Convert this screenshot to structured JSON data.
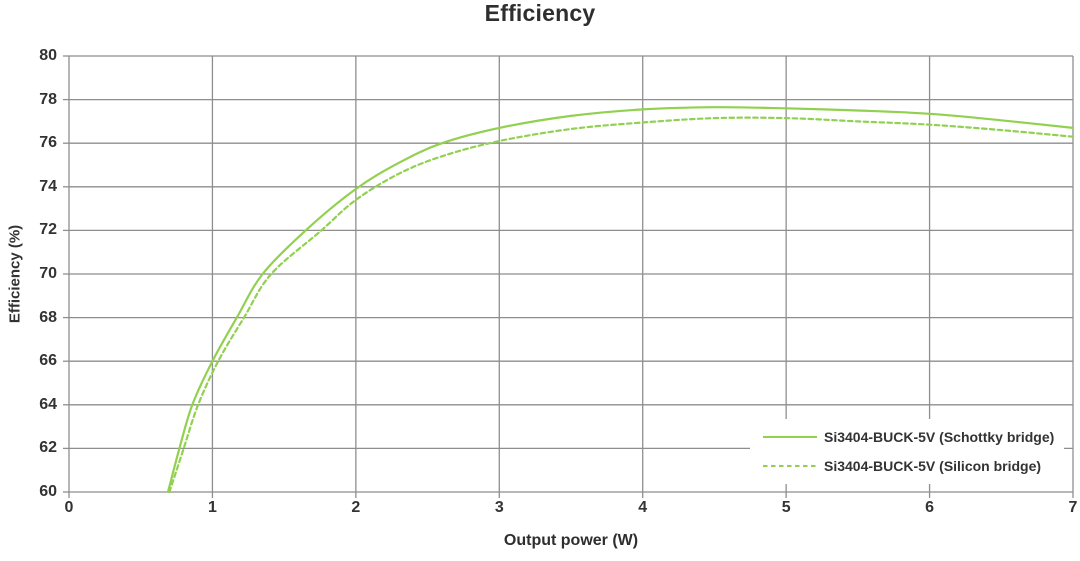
{
  "title": "Efficiency",
  "colors": {
    "series_green": "#92d050",
    "grid": "#8e8e8e",
    "text": "#333333",
    "plot_background": "#ffffff"
  },
  "legend": {
    "position": "inside-bottom-right",
    "items": [
      {
        "label": "Si3404-BUCK-5V (Schottky bridge)",
        "line_style": "solid"
      },
      {
        "label": "Si3404-BUCK-5V (Silicon bridge)",
        "line_style": "dashed"
      }
    ]
  },
  "chart_data": {
    "type": "line",
    "title": "Efficiency",
    "xlabel": "Output power (W)",
    "ylabel": "Efficiency (%)",
    "xlim": [
      0,
      7
    ],
    "ylim": [
      60,
      80
    ],
    "x_ticks": [
      0,
      1,
      2,
      3,
      4,
      5,
      6,
      7
    ],
    "y_ticks": [
      60,
      62,
      64,
      66,
      68,
      70,
      72,
      74,
      76,
      78,
      80
    ],
    "grid": true,
    "legend_position": "inside bottom-right",
    "series": [
      {
        "name": "Si3404-BUCK-5V (Schottky bridge)",
        "style": "solid",
        "color": "#92d050",
        "points": [
          [
            0.69,
            60.0
          ],
          [
            0.77,
            62.0
          ],
          [
            0.86,
            64.0
          ],
          [
            1.0,
            66.0
          ],
          [
            1.17,
            68.0
          ],
          [
            1.35,
            70.0
          ],
          [
            1.65,
            72.0
          ],
          [
            2.0,
            73.9
          ],
          [
            2.3,
            75.1
          ],
          [
            2.6,
            76.0
          ],
          [
            3.0,
            76.7
          ],
          [
            3.5,
            77.25
          ],
          [
            4.0,
            77.55
          ],
          [
            4.5,
            77.65
          ],
          [
            5.0,
            77.6
          ],
          [
            5.5,
            77.5
          ],
          [
            6.0,
            77.35
          ],
          [
            6.5,
            77.05
          ],
          [
            7.0,
            76.7
          ]
        ]
      },
      {
        "name": "Si3404-BUCK-5V (Silicon bridge)",
        "style": "dashed",
        "color": "#92d050",
        "points": [
          [
            0.7,
            60.0
          ],
          [
            0.8,
            62.0
          ],
          [
            0.9,
            64.0
          ],
          [
            1.04,
            66.0
          ],
          [
            1.22,
            68.0
          ],
          [
            1.41,
            70.0
          ],
          [
            1.76,
            72.0
          ],
          [
            2.0,
            73.4
          ],
          [
            2.3,
            74.6
          ],
          [
            2.6,
            75.4
          ],
          [
            3.0,
            76.1
          ],
          [
            3.5,
            76.65
          ],
          [
            4.0,
            76.95
          ],
          [
            4.5,
            77.15
          ],
          [
            5.0,
            77.15
          ],
          [
            5.5,
            77.0
          ],
          [
            6.0,
            76.85
          ],
          [
            6.5,
            76.6
          ],
          [
            7.0,
            76.3
          ]
        ]
      }
    ]
  }
}
